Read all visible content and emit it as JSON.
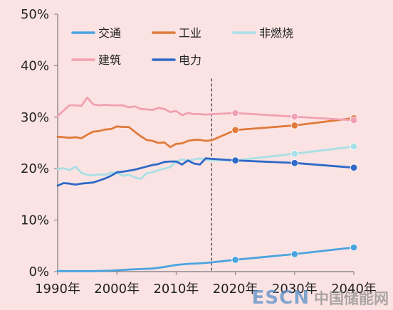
{
  "chart_data": {
    "type": "line",
    "xlim": [
      1990,
      2040
    ],
    "ylim": [
      0,
      50
    ],
    "x_ticks": [
      "1990年",
      "2000年",
      "2010年",
      "2020年",
      "2030年",
      "2040年"
    ],
    "y_ticks": [
      "0%",
      "10%",
      "20%",
      "30%",
      "40%",
      "50%"
    ],
    "grid": false,
    "legend_position": "top",
    "divider_year": 2016,
    "series": [
      {
        "name": "交通",
        "color": "#4aa3df",
        "history": [
          [
            1990,
            0.1
          ],
          [
            1993,
            0.1
          ],
          [
            1996,
            0.1
          ],
          [
            1999,
            0.2
          ],
          [
            2002,
            0.4
          ],
          [
            2004,
            0.5
          ],
          [
            2006,
            0.6
          ],
          [
            2008,
            0.9
          ],
          [
            2009,
            1.1
          ],
          [
            2010,
            1.3
          ],
          [
            2012,
            1.5
          ],
          [
            2014,
            1.6
          ],
          [
            2016,
            1.8
          ]
        ],
        "projection": [
          [
            2016,
            1.8
          ],
          [
            2020,
            2.3
          ],
          [
            2030,
            3.4
          ],
          [
            2040,
            4.7
          ]
        ],
        "markers": [
          [
            2020,
            2.3
          ],
          [
            2030,
            3.4
          ],
          [
            2040,
            4.7
          ]
        ]
      },
      {
        "name": "工业",
        "color": "#e07a3a",
        "history": [
          [
            1990,
            26.2
          ],
          [
            1991,
            26.1
          ],
          [
            1992,
            26.0
          ],
          [
            1993,
            26.1
          ],
          [
            1994,
            25.9
          ],
          [
            1995,
            26.6
          ],
          [
            1996,
            27.2
          ],
          [
            1997,
            27.3
          ],
          [
            1998,
            27.6
          ],
          [
            1999,
            27.7
          ],
          [
            2000,
            28.2
          ],
          [
            2001,
            28.1
          ],
          [
            2002,
            28.1
          ],
          [
            2003,
            27.2
          ],
          [
            2004,
            26.3
          ],
          [
            2005,
            25.6
          ],
          [
            2006,
            25.4
          ],
          [
            2007,
            25.0
          ],
          [
            2008,
            25.1
          ],
          [
            2009,
            24.2
          ],
          [
            2010,
            24.8
          ],
          [
            2011,
            24.9
          ],
          [
            2012,
            25.4
          ],
          [
            2013,
            25.6
          ],
          [
            2014,
            25.6
          ],
          [
            2015,
            25.4
          ],
          [
            2016,
            25.5
          ]
        ],
        "projection": [
          [
            2016,
            25.5
          ],
          [
            2020,
            27.5
          ],
          [
            2030,
            28.4
          ],
          [
            2040,
            29.8
          ]
        ],
        "markers": [
          [
            2020,
            27.5
          ],
          [
            2030,
            28.4
          ],
          [
            2040,
            29.8
          ]
        ]
      },
      {
        "name": "非燃烧",
        "color": "#a8e0e6",
        "history": [
          [
            1990,
            19.9
          ],
          [
            1991,
            20.1
          ],
          [
            1992,
            19.7
          ],
          [
            1993,
            20.4
          ],
          [
            1994,
            19.2
          ],
          [
            1995,
            18.8
          ],
          [
            1996,
            18.7
          ],
          [
            1997,
            18.9
          ],
          [
            1998,
            18.8
          ],
          [
            1999,
            19.2
          ],
          [
            2000,
            19.2
          ],
          [
            2001,
            18.6
          ],
          [
            2002,
            18.8
          ],
          [
            2003,
            18.3
          ],
          [
            2004,
            18.0
          ],
          [
            2005,
            19.1
          ],
          [
            2006,
            19.3
          ],
          [
            2007,
            19.7
          ],
          [
            2008,
            20.0
          ],
          [
            2009,
            20.3
          ],
          [
            2010,
            21.4
          ],
          [
            2011,
            21.8
          ],
          [
            2012,
            21.5
          ],
          [
            2013,
            21.8
          ],
          [
            2014,
            22.0
          ],
          [
            2015,
            21.7
          ],
          [
            2016,
            21.6
          ]
        ],
        "projection": [
          [
            2016,
            21.6
          ],
          [
            2020,
            21.6
          ],
          [
            2030,
            22.9
          ],
          [
            2040,
            24.3
          ]
        ],
        "markers": [
          [
            2020,
            21.6
          ],
          [
            2030,
            22.9
          ],
          [
            2040,
            24.3
          ]
        ]
      },
      {
        "name": "建筑",
        "color": "#f1a0b2",
        "history": [
          [
            1990,
            30.2
          ],
          [
            1991,
            31.3
          ],
          [
            1992,
            32.3
          ],
          [
            1993,
            32.3
          ],
          [
            1994,
            32.2
          ],
          [
            1995,
            33.8
          ],
          [
            1996,
            32.5
          ],
          [
            1997,
            32.3
          ],
          [
            1998,
            32.4
          ],
          [
            1999,
            32.3
          ],
          [
            2000,
            32.3
          ],
          [
            2001,
            32.3
          ],
          [
            2002,
            31.9
          ],
          [
            2003,
            32.1
          ],
          [
            2004,
            31.6
          ],
          [
            2005,
            31.5
          ],
          [
            2006,
            31.4
          ],
          [
            2007,
            31.8
          ],
          [
            2008,
            31.6
          ],
          [
            2009,
            31.0
          ],
          [
            2010,
            31.2
          ],
          [
            2011,
            30.4
          ],
          [
            2012,
            30.8
          ],
          [
            2013,
            30.6
          ],
          [
            2014,
            30.6
          ],
          [
            2015,
            30.5
          ],
          [
            2016,
            30.6
          ]
        ],
        "projection": [
          [
            2016,
            30.6
          ],
          [
            2020,
            30.8
          ],
          [
            2030,
            30.1
          ],
          [
            2040,
            29.4
          ]
        ],
        "markers": [
          [
            2020,
            30.8
          ],
          [
            2030,
            30.1
          ],
          [
            2040,
            29.4
          ]
        ]
      },
      {
        "name": "电力",
        "color": "#2e69c8",
        "history": [
          [
            1990,
            16.7
          ],
          [
            1991,
            17.2
          ],
          [
            1992,
            17.1
          ],
          [
            1993,
            16.9
          ],
          [
            1994,
            17.1
          ],
          [
            1995,
            17.2
          ],
          [
            1996,
            17.3
          ],
          [
            1997,
            17.7
          ],
          [
            1998,
            18.1
          ],
          [
            1999,
            18.6
          ],
          [
            2000,
            19.3
          ],
          [
            2001,
            19.4
          ],
          [
            2002,
            19.6
          ],
          [
            2003,
            19.8
          ],
          [
            2004,
            20.1
          ],
          [
            2005,
            20.4
          ],
          [
            2006,
            20.7
          ],
          [
            2007,
            20.9
          ],
          [
            2008,
            21.3
          ],
          [
            2009,
            21.4
          ],
          [
            2010,
            21.4
          ],
          [
            2011,
            20.8
          ],
          [
            2012,
            21.6
          ],
          [
            2013,
            21.0
          ],
          [
            2014,
            20.8
          ],
          [
            2015,
            22.0
          ],
          [
            2016,
            21.9
          ]
        ],
        "projection": [
          [
            2016,
            21.9
          ],
          [
            2020,
            21.6
          ],
          [
            2030,
            21.1
          ],
          [
            2040,
            20.2
          ]
        ],
        "markers": [
          [
            2020,
            21.6
          ],
          [
            2030,
            21.1
          ],
          [
            2040,
            20.2
          ]
        ]
      }
    ]
  },
  "watermark": {
    "brand": "ESCN",
    "site": "中国储能网"
  }
}
